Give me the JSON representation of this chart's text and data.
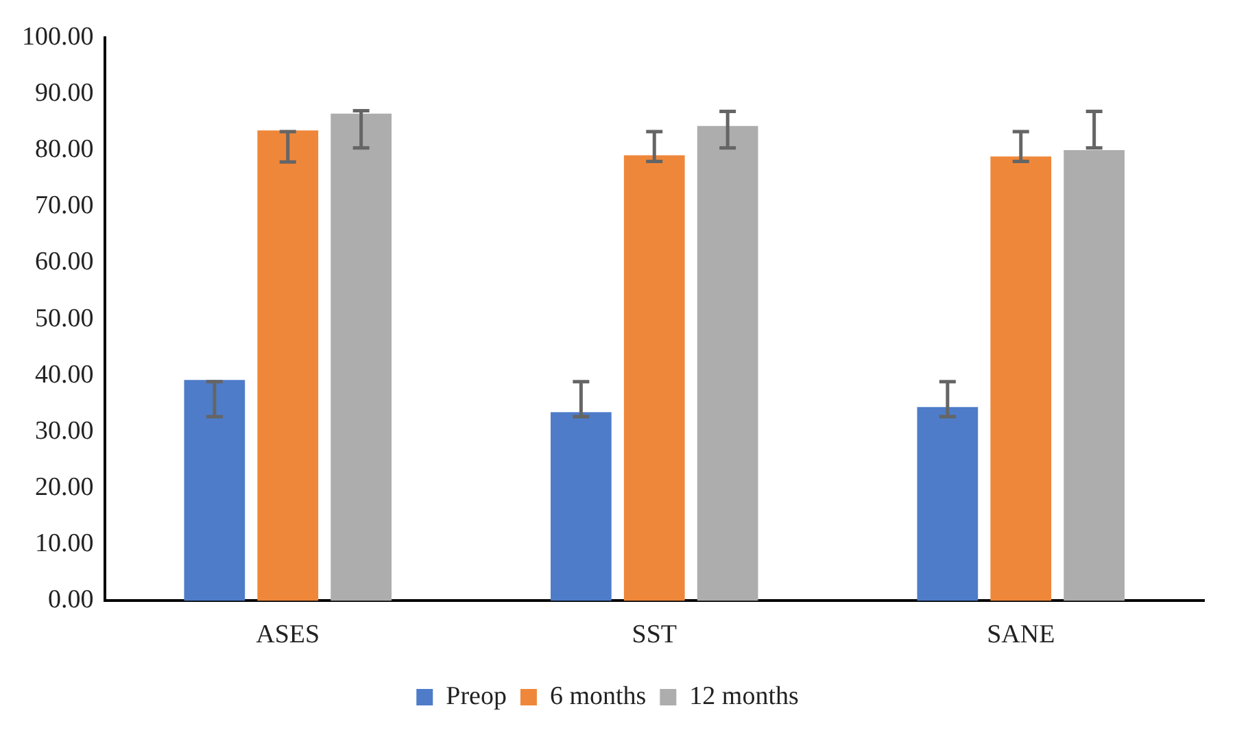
{
  "chart_data": {
    "type": "bar",
    "categories": [
      "ASES",
      "SST",
      "SANE"
    ],
    "series": [
      {
        "name": "Preop",
        "color": "#4e7cc9",
        "values": [
          39.2,
          33.5,
          34.4
        ],
        "errors": [
          [
            32.7,
            38.9
          ],
          [
            32.7,
            38.9
          ],
          [
            32.7,
            38.9
          ]
        ]
      },
      {
        "name": "6 months",
        "color": "#ef873b",
        "values": [
          83.5,
          79.1,
          78.9
        ],
        "errors": [
          [
            77.9,
            83.3
          ],
          [
            78.0,
            83.3
          ],
          [
            78.0,
            83.3
          ]
        ]
      },
      {
        "name": "12 months",
        "color": "#adadad",
        "values": [
          86.5,
          84.3,
          80.0
        ],
        "errors": [
          [
            80.4,
            87.0
          ],
          [
            80.4,
            86.9
          ],
          [
            80.4,
            86.9
          ]
        ]
      }
    ],
    "ylim": [
      0,
      100
    ],
    "yticks": [
      {
        "value": 0,
        "label": "0.00"
      },
      {
        "value": 10,
        "label": "10.00"
      },
      {
        "value": 20,
        "label": "20.00"
      },
      {
        "value": 30,
        "label": "30.00"
      },
      {
        "value": 40,
        "label": "40.00"
      },
      {
        "value": 50,
        "label": "50.00"
      },
      {
        "value": 60,
        "label": "60.00"
      },
      {
        "value": 70,
        "label": "70.00"
      },
      {
        "value": 80,
        "label": "80.00"
      },
      {
        "value": 90,
        "label": "90.00"
      },
      {
        "value": 100,
        "label": "100.00"
      }
    ],
    "grid": false,
    "legend": "bottom"
  }
}
